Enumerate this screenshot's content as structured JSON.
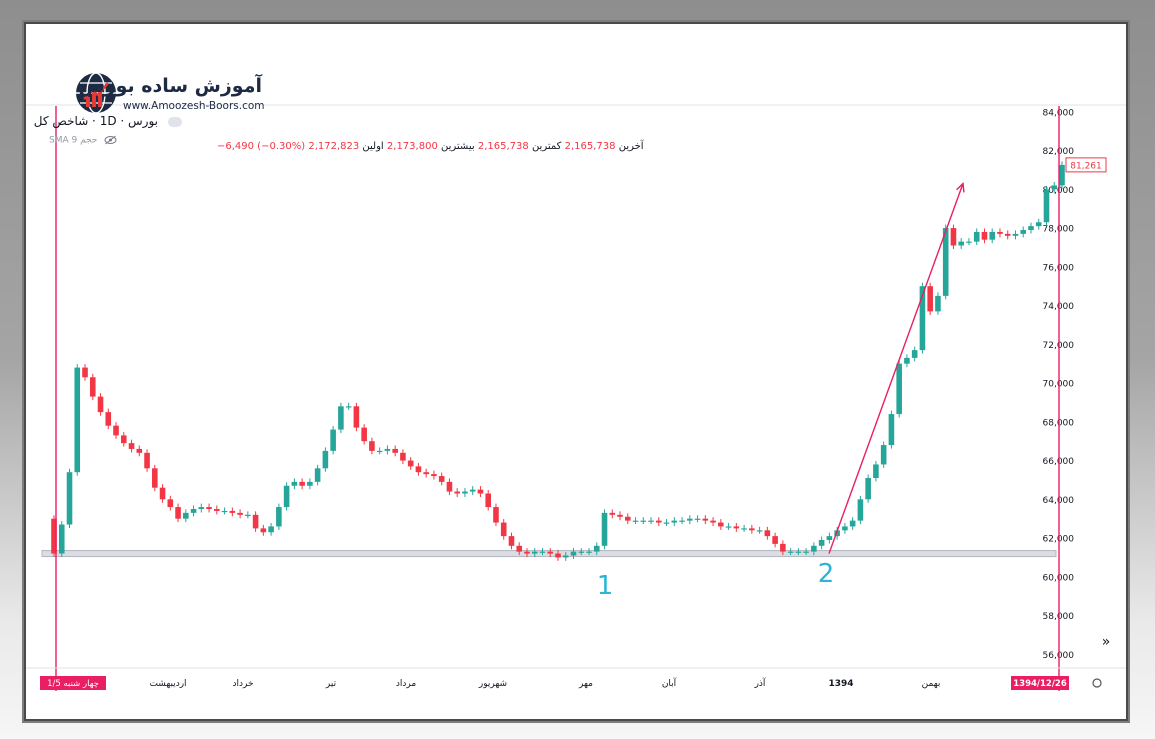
{
  "logo": {
    "title": "آموزش ساده بورس",
    "url": "www.Amoozesh-Boors.com"
  },
  "header": {
    "symbol": "بورس · 1D · شاخص کل",
    "ohlc": {
      "open_label": "اولین",
      "open_value": "2,172,823",
      "high_label": "بیشترین",
      "high_value": "2,173,800",
      "low_label": "کمترین",
      "low_value": "2,165,738",
      "close_label": "آخرین",
      "close_value": "2,165,738",
      "change": "−6,490 (−0.30%)"
    },
    "indicator": "SMA 9 حجم"
  },
  "colors": {
    "up": "#26a69a",
    "down": "#f23645",
    "vline": "#e91e63",
    "arrow": "#e91e63",
    "support": "#b2b5be",
    "label_num": "#29b6d6",
    "axis_text": "#131722"
  },
  "chart_data": {
    "type": "candlestick",
    "y_axis": {
      "position": "right",
      "ticks": [
        "56,000",
        "58,000",
        "60,000",
        "62,000",
        "64,000",
        "66,000",
        "68,000",
        "70,000",
        "72,000",
        "74,000",
        "76,000",
        "78,000",
        "80,000",
        "82,000",
        "84,000"
      ],
      "range": [
        55500,
        84300
      ],
      "last_price_label": "81,261",
      "last_price": 81261
    },
    "x_axis": {
      "labels": [
        "اردیبهشت",
        "خرداد",
        "تیر",
        "مرداد",
        "شهریور",
        "مهر",
        "آبان",
        "آذر",
        "1394",
        "بهمن"
      ],
      "left_marker": "چهار شنبه 1/5",
      "right_marker": "1394/12/26"
    },
    "support_level": 61200,
    "annotations": [
      "1",
      "2"
    ],
    "closes": [
      61200,
      62700,
      65400,
      70800,
      70300,
      69300,
      68500,
      67800,
      67300,
      66900,
      66600,
      66400,
      65600,
      64600,
      64000,
      63600,
      63000,
      63300,
      63500,
      63600,
      63500,
      63400,
      63400,
      63300,
      63200,
      63200,
      62500,
      62300,
      62600,
      63600,
      64700,
      64900,
      64700,
      64900,
      65600,
      66500,
      67600,
      68800,
      68800,
      67700,
      67000,
      66500,
      66500,
      66600,
      66400,
      66000,
      65700,
      65400,
      65300,
      65200,
      64900,
      64400,
      64300,
      64400,
      64500,
      64300,
      63600,
      62800,
      62100,
      61600,
      61300,
      61200,
      61300,
      61300,
      61200,
      61000,
      61100,
      61300,
      61300,
      61300,
      61600,
      63300,
      63200,
      63100,
      62900,
      62900,
      62900,
      62900,
      62800,
      62800,
      62900,
      62900,
      63000,
      63000,
      62900,
      62800,
      62600,
      62600,
      62500,
      62500,
      62400,
      62400,
      62100,
      61700,
      61300,
      61300,
      61300,
      61300,
      61600,
      61900,
      62100,
      62400,
      62600,
      62900,
      64000,
      65100,
      65800,
      66800,
      68400,
      71000,
      71300,
      71700,
      75000,
      73700,
      74500,
      78000,
      77100,
      77300,
      77300,
      77800,
      77400,
      77800,
      77700,
      77600,
      77700,
      77900,
      78100,
      78300,
      80000,
      80200,
      81261
    ]
  }
}
